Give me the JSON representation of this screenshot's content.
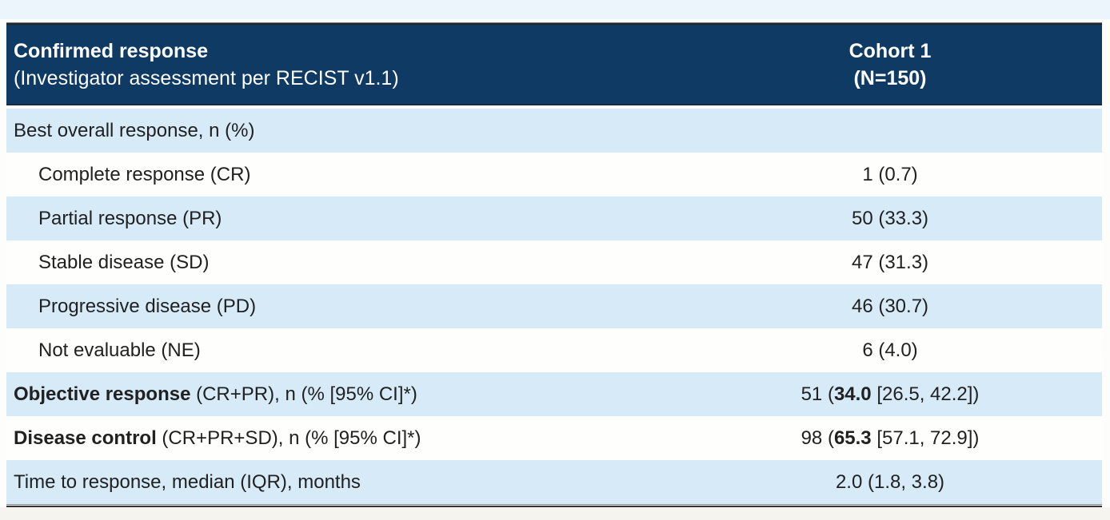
{
  "table": {
    "header": {
      "title_line1": "Confirmed response",
      "title_line2": "(Investigator assessment per RECIST v1.1)",
      "cohort_line1": "Cohort 1",
      "cohort_line2": "(N=150)"
    },
    "rows": [
      {
        "label_bold": "",
        "label": "Best overall response, n (%)",
        "value_pre": "",
        "value_bold": "",
        "value_post": "",
        "indent": false
      },
      {
        "label_bold": "",
        "label": "Complete response (CR)",
        "value_pre": "1 (0.7)",
        "value_bold": "",
        "value_post": "",
        "indent": true
      },
      {
        "label_bold": "",
        "label": "Partial response (PR)",
        "value_pre": "50 (33.3)",
        "value_bold": "",
        "value_post": "",
        "indent": true
      },
      {
        "label_bold": "",
        "label": "Stable disease (SD)",
        "value_pre": "47 (31.3)",
        "value_bold": "",
        "value_post": "",
        "indent": true
      },
      {
        "label_bold": "",
        "label": "Progressive disease (PD)",
        "value_pre": "46 (30.7)",
        "value_bold": "",
        "value_post": "",
        "indent": true
      },
      {
        "label_bold": "",
        "label": "Not evaluable (NE)",
        "value_pre": "6 (4.0)",
        "value_bold": "",
        "value_post": "",
        "indent": true
      },
      {
        "label_bold": "Objective response",
        "label": " (CR+PR), n (% [95% CI]*)",
        "value_pre": "51 (",
        "value_bold": "34.0",
        "value_post": " [26.5, 42.2])",
        "indent": false
      },
      {
        "label_bold": "Disease control",
        "label": " (CR+PR+SD), n (% [95% CI]*)",
        "value_pre": "98 (",
        "value_bold": "65.3",
        "value_post": " [57.1, 72.9])",
        "indent": false
      },
      {
        "label_bold": "",
        "label": "Time to response, median (IQR), months",
        "value_pre": "2.0 (1.8, 3.8)",
        "value_bold": "",
        "value_post": "",
        "indent": false
      }
    ]
  },
  "colors": {
    "header_bg": "#0e3a63",
    "header_text": "#ffffff",
    "row_alt_bg": "#d6eaf8",
    "row_bg": "#fefefd",
    "body_text": "#212121",
    "outer_border": "#333333"
  },
  "chart_data": {
    "type": "table",
    "columns": [
      "Confirmed response (Investigator assessment per RECIST v1.1)",
      "Cohort 1 (N=150)"
    ],
    "rows": [
      [
        "Best overall response, n (%)",
        ""
      ],
      [
        "Complete response (CR)",
        "1 (0.7)"
      ],
      [
        "Partial response (PR)",
        "50 (33.3)"
      ],
      [
        "Stable disease (SD)",
        "47 (31.3)"
      ],
      [
        "Progressive disease (PD)",
        "46 (30.7)"
      ],
      [
        "Not evaluable (NE)",
        "6 (4.0)"
      ],
      [
        "Objective response (CR+PR), n (% [95% CI]*)",
        "51 (34.0 [26.5, 42.2])"
      ],
      [
        "Disease control (CR+PR+SD), n (% [95% CI]*)",
        "98 (65.3 [57.1, 72.9])"
      ],
      [
        "Time to response, median (IQR), months",
        "2.0 (1.8, 3.8)"
      ]
    ]
  }
}
